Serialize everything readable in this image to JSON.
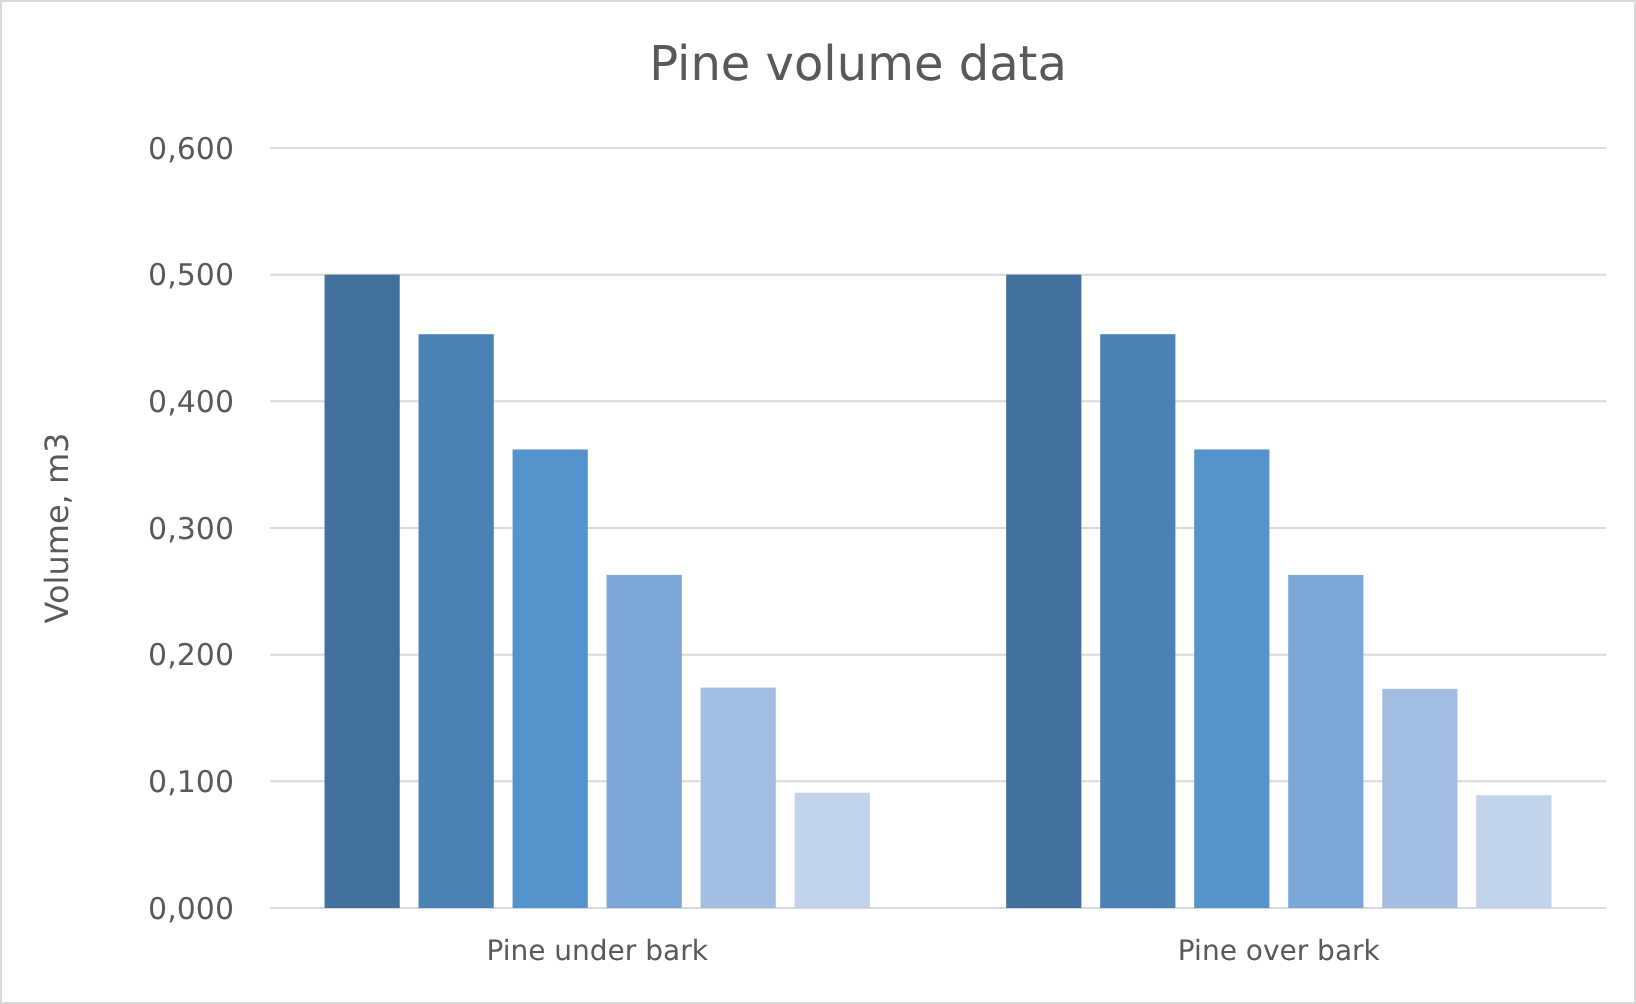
{
  "chart_data": {
    "type": "bar",
    "title": "Pine volume data",
    "ylabel": "Volume, m3",
    "categories": [
      "Pine under bark",
      "Pine over bark"
    ],
    "series": [
      {
        "color": "#41719c",
        "values": [
          0.5,
          0.5
        ]
      },
      {
        "color": "#4a82b4",
        "values": [
          0.453,
          0.453
        ]
      },
      {
        "color": "#5593cd",
        "values": [
          0.362,
          0.362
        ]
      },
      {
        "color": "#7ca6d7",
        "values": [
          0.263,
          0.263
        ]
      },
      {
        "color": "#a3bde2",
        "values": [
          0.174,
          0.173
        ]
      },
      {
        "color": "#c1d2ea",
        "values": [
          0.091,
          0.089
        ]
      }
    ],
    "ylim": [
      0,
      0.6
    ],
    "yticks": [
      {
        "value": 0,
        "label": "0,000"
      },
      {
        "value": 0.1,
        "label": "0,100"
      },
      {
        "value": 0.2,
        "label": "0,200"
      },
      {
        "value": 0.3,
        "label": "0,300"
      },
      {
        "value": 0.4,
        "label": "0,400"
      },
      {
        "value": 0.5,
        "label": "0,500"
      },
      {
        "value": 0.6,
        "label": "0,600"
      }
    ],
    "grid": "y"
  }
}
